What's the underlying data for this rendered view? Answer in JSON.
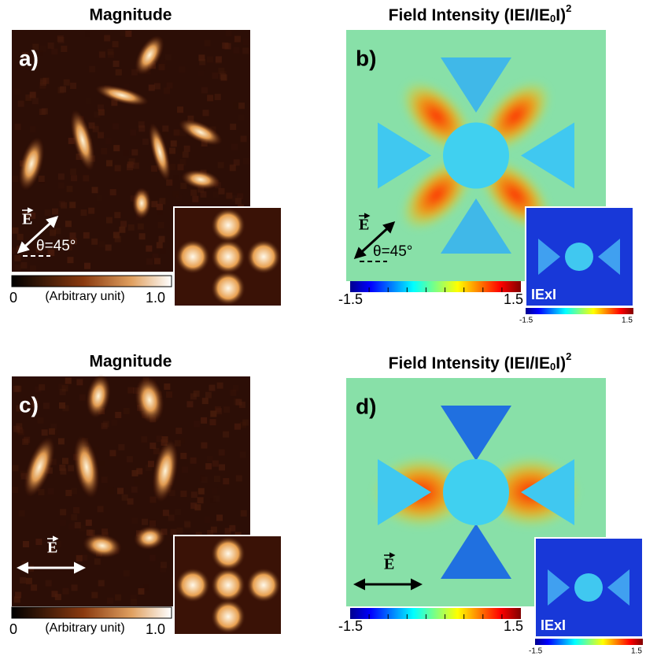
{
  "panels": [
    {
      "label": "a)",
      "title": "Magnitude",
      "polarization": {
        "symbol": "E",
        "angle": "θ=45°"
      },
      "colorbar": {
        "min": "0",
        "caption": "(Arbitrary unit)",
        "max": "1.0"
      }
    },
    {
      "label": "b)",
      "title": {
        "text": "Field Intensity (IEI/IE",
        "sub": "0",
        "rest": "I)",
        "sup": "2"
      },
      "polarization": {
        "symbol": "E",
        "angle": "θ=45°"
      },
      "colorbar": {
        "min": "-1.5",
        "max": "1.5"
      },
      "inset": {
        "label": "IExI",
        "colorbar": {
          "min": "-1.5",
          "max": "1.5"
        }
      }
    },
    {
      "label": "c)",
      "title": "Magnitude",
      "polarization": {
        "symbol": "E"
      },
      "colorbar": {
        "min": "0",
        "caption": "(Arbitrary unit)",
        "max": "1.0"
      }
    },
    {
      "label": "d)",
      "title": {
        "text": "Field Intensity (IEI/IE",
        "sub": "0",
        "rest": "I)",
        "sup": "2"
      },
      "polarization": {
        "symbol": "E"
      },
      "colorbar": {
        "min": "-1.5",
        "max": "1.5"
      },
      "inset": {
        "label": "IExI",
        "colorbar": {
          "min": "-1.5",
          "max": "1.5"
        }
      }
    }
  ]
}
